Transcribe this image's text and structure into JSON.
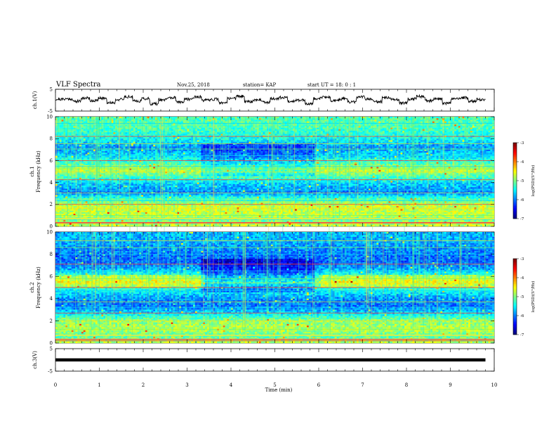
{
  "header": {
    "title": "VLF Spectra",
    "date": "Nov.25, 2018",
    "station": "station= KAP",
    "start": "start UT =  18: 0  : 1"
  },
  "chart_data": [
    {
      "type": "line",
      "id": "ch1_waveform",
      "ylabel": "ch.1(V)",
      "ylim": [
        -5,
        5
      ],
      "yticks": [
        "5",
        "-5"
      ],
      "x_range_min": [
        0,
        9.8
      ],
      "description_values": "noise-like waveform mostly between about -2 and +3 V",
      "series": [
        {
          "values": [
            0.4,
            0.6,
            -0.5,
            1.0,
            -0.2,
            0.9,
            -1.1,
            0.3,
            1.6,
            -0.4,
            0.7,
            -1.7,
            0.2,
            1.1,
            -0.8,
            0.5,
            1.5,
            -0.1,
            0.4,
            -1.3,
            0.9,
            1.8,
            -0.6,
            0.2,
            -1.0,
            0.7,
            1.2,
            -0.4,
            0.0,
            -1.6,
            0.8,
            1.3,
            -0.2,
            0.6,
            -0.9,
            1.4,
            0.5,
            -0.7,
            1.0,
            0.2,
            -1.2,
            0.6,
            1.7,
            -0.3,
            0.5,
            -1.4,
            0.8,
            1.1,
            -0.5,
            0.3
          ]
        }
      ]
    },
    {
      "type": "heatmap",
      "id": "ch1_spectrogram",
      "ylabel": "ch.1\nFrequency (kHz)",
      "ylim": [
        0,
        10
      ],
      "yticks": [
        "0",
        "2",
        "4",
        "6",
        "8",
        "10"
      ],
      "colorbar": {
        "label": "log(PSD)(V²/Hz)",
        "ticks": [
          "-3",
          "-4",
          "-5",
          "-6",
          "-7"
        ],
        "range": [
          -7,
          -3
        ]
      }
    },
    {
      "type": "heatmap",
      "id": "ch2_spectrogram",
      "ylabel": "ch.2\nFrequency (kHz)",
      "ylim": [
        0,
        10
      ],
      "yticks": [
        "0",
        "2",
        "4",
        "6",
        "8",
        "10"
      ],
      "colorbar": {
        "label": "log(PSD)(V²/Hz)",
        "ticks": [
          "-3",
          "-4",
          "-5",
          "-6",
          "-7"
        ],
        "range": [
          -7,
          -3
        ]
      }
    },
    {
      "type": "line",
      "id": "ch3_waveform",
      "ylabel": "ch.3(V)",
      "ylim": [
        -5,
        5
      ],
      "yticks": [
        "5",
        "-5"
      ],
      "series": [
        {
          "values": [
            0,
            0,
            0,
            0,
            0,
            0,
            0,
            0,
            0,
            0
          ]
        }
      ]
    }
  ],
  "x_axis": {
    "label": "Time  (min)",
    "ticks": [
      "0",
      "1",
      "2",
      "3",
      "4",
      "5",
      "6",
      "7",
      "8",
      "9",
      "10"
    ],
    "range": [
      0,
      10
    ]
  }
}
